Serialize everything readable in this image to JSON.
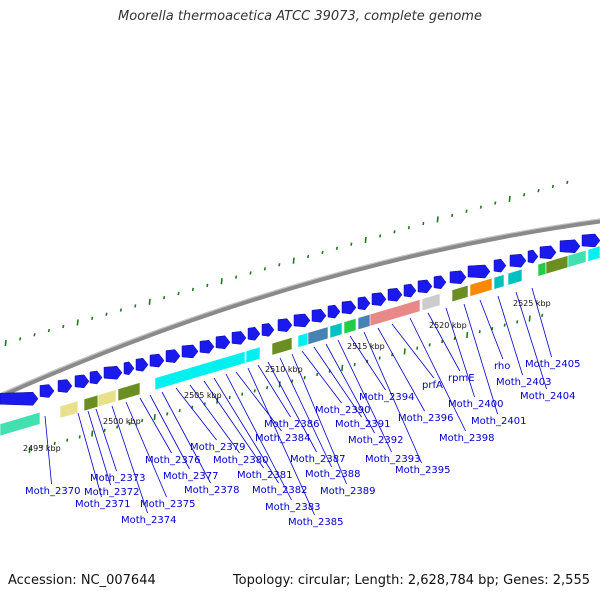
{
  "title": "Moorella thermoacetica ATCC 39073, complete genome",
  "footer": {
    "accession": "Accession: NC_007644",
    "topology": "Topology: circular; Length: 2,628,784 bp; Genes: 2,555"
  },
  "colors": {
    "backbone": "#8a8a8a",
    "gene_arrow": "#1a1aee",
    "label": "#0000cc",
    "tick_green": "#227722",
    "cyan": "#00f0f0",
    "olive": "#6b8e23",
    "khaki": "#e8e08a",
    "steelblue": "#4682b4",
    "salmon": "#e88888",
    "orange": "#ff8800",
    "teal": "#00c0c0",
    "green": "#22cc44",
    "aquamarine": "#40e0b0"
  },
  "kbp_ticks": [
    "2495 kbp",
    "2500 kbp",
    "2505 kbp",
    "2510 kbp",
    "2515 kbp",
    "2520 kbp",
    "2525 kbp"
  ],
  "gene_labels": [
    "Moth_2370",
    "Moth_2371",
    "Moth_2372",
    "Moth_2373",
    "Moth_2374",
    "Moth_2375",
    "Moth_2376",
    "Moth_2377",
    "Moth_2378",
    "Moth_2379",
    "Moth_2380",
    "Moth_2381",
    "Moth_2382",
    "Moth_2383",
    "Moth_2384",
    "Moth_2385",
    "Moth_2386",
    "Moth_2387",
    "Moth_2388",
    "Moth_2389",
    "Moth_2390",
    "Moth_2391",
    "Moth_2392",
    "Moth_2393",
    "Moth_2394",
    "Moth_2395",
    "Moth_2396",
    "prfA",
    "Moth_2398",
    "rpmE",
    "Moth_2400",
    "Moth_2401",
    "rho",
    "Moth_2403",
    "Moth_2404",
    "Moth_2405"
  ]
}
